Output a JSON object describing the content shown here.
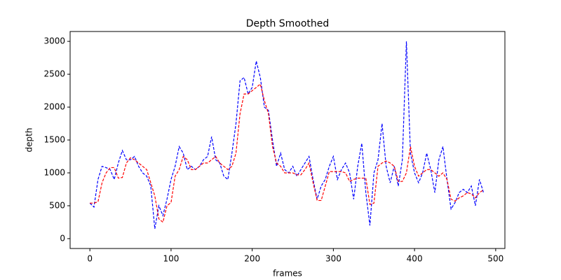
{
  "chart_data": {
    "type": "line",
    "title": "Depth Smoothed",
    "x_label": "frames",
    "y_label": "depth",
    "x": [
      0,
      5,
      10,
      15,
      20,
      25,
      30,
      35,
      40,
      45,
      50,
      55,
      60,
      65,
      70,
      75,
      80,
      85,
      90,
      95,
      100,
      105,
      110,
      115,
      120,
      125,
      130,
      135,
      140,
      145,
      150,
      155,
      160,
      165,
      170,
      175,
      180,
      185,
      190,
      195,
      200,
      205,
      210,
      215,
      220,
      225,
      230,
      235,
      240,
      245,
      250,
      255,
      260,
      265,
      270,
      275,
      280,
      285,
      290,
      295,
      300,
      305,
      310,
      315,
      320,
      325,
      330,
      335,
      340,
      345,
      350,
      355,
      360,
      365,
      370,
      375,
      380,
      385,
      390,
      395,
      400,
      405,
      410,
      415,
      420,
      425,
      430,
      435,
      440,
      445,
      450,
      455,
      460,
      465,
      470,
      475,
      480,
      485
    ],
    "series": [
      {
        "color": "#0000ff",
        "values": [
          540,
          480,
          900,
          1100,
          1080,
          1050,
          900,
          1150,
          1340,
          1200,
          1200,
          1250,
          1100,
          1000,
          950,
          800,
          150,
          500,
          350,
          600,
          900,
          1100,
          1400,
          1300,
          1050,
          1100,
          1050,
          1100,
          1200,
          1250,
          1550,
          1200,
          1150,
          950,
          900,
          1300,
          1750,
          2400,
          2450,
          2200,
          2300,
          2700,
          2450,
          2000,
          1950,
          1500,
          1100,
          1300,
          1050,
          1000,
          1100,
          950,
          1050,
          1150,
          1250,
          900,
          600,
          800,
          900,
          1100,
          1250,
          900,
          1050,
          1150,
          1000,
          600,
          1100,
          1450,
          700,
          200,
          1000,
          1200,
          1750,
          1100,
          850,
          1100,
          800,
          1200,
          3000,
          1300,
          1000,
          850,
          1000,
          1300,
          1050,
          700,
          1200,
          1400,
          900,
          450,
          550,
          700,
          750,
          700,
          800,
          500,
          900,
          700
        ]
      },
      {
        "color": "#ff0000",
        "values": [
          540,
          540,
          560,
          850,
          1000,
          1080,
          1080,
          920,
          930,
          1150,
          1230,
          1200,
          1150,
          1100,
          1050,
          850,
          650,
          300,
          250,
          500,
          550,
          950,
          1050,
          1250,
          1200,
          1050,
          1050,
          1100,
          1150,
          1150,
          1200,
          1250,
          1150,
          1100,
          1050,
          1100,
          1300,
          1900,
          2200,
          2200,
          2250,
          2300,
          2350,
          2100,
          1900,
          1400,
          1150,
          1100,
          1000,
          1000,
          1000,
          970,
          970,
          1050,
          1150,
          850,
          580,
          580,
          800,
          1020,
          1020,
          1020,
          1020,
          1000,
          870,
          900,
          920,
          920,
          920,
          520,
          540,
          1100,
          1150,
          1180,
          1150,
          1100,
          870,
          870,
          1000,
          1400,
          1100,
          950,
          1000,
          1050,
          1050,
          1000,
          950,
          1000,
          900,
          600,
          570,
          620,
          650,
          700,
          680,
          620,
          700,
          740
        ]
      }
    ],
    "xlim": [
      -24.35,
      511.35
    ],
    "xticks": [
      0,
      100,
      200,
      300,
      400,
      500
    ],
    "ylim": [
      -150,
      3150
    ],
    "yticks": [
      0,
      500,
      1000,
      1500,
      2000,
      2500,
      3000
    ],
    "line_style": "dashed",
    "grid": false
  }
}
